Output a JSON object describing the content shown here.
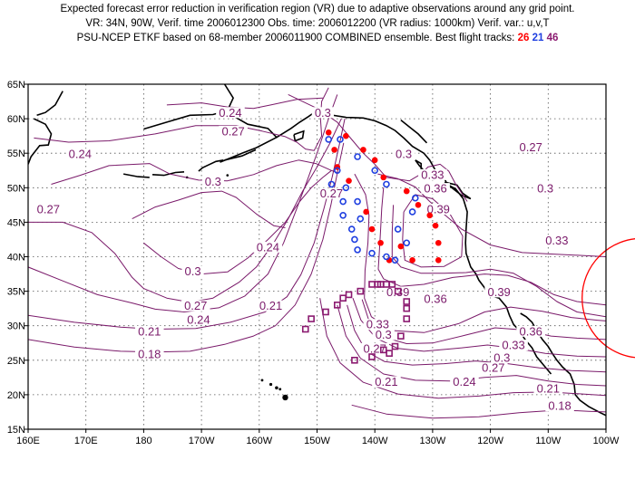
{
  "header": {
    "line1": "Expected forecast error reduction in verification region (VR) due to adaptive observations around any grid point.",
    "line2": "VR: 34N, 90W, Verif. time 2006012300   Obs. time: 2006012200 (VR radius: 1000km)    Verif. var.: u,v,T",
    "line3_prefix": "PSU-NCEP ETKF based on 68-member 2006011900 COMBINED ensemble.   Best flight tracks:",
    "track_red": "26",
    "track_blue": "21",
    "track_purple": "46"
  },
  "map": {
    "lon_labels": [
      "160E",
      "170E",
      "180",
      "170W",
      "160W",
      "150W",
      "140W",
      "130W",
      "120W",
      "110W",
      "100W"
    ],
    "lat_labels": [
      "65N",
      "60N",
      "55N",
      "50N",
      "45N",
      "40N",
      "35N",
      "30N",
      "25N",
      "20N",
      "15N"
    ],
    "contour_color": "#7a1a6a",
    "contour_labels": [
      {
        "text": "0.24",
        "lon": -165,
        "lat": 60.5
      },
      {
        "text": "0.27",
        "lon": -164.5,
        "lat": 57.8
      },
      {
        "text": "0.24",
        "lon": 169,
        "lat": 54.5
      },
      {
        "text": "0.3",
        "lon": -168,
        "lat": 50.5
      },
      {
        "text": "0.27",
        "lon": 163.5,
        "lat": 46.5
      },
      {
        "text": "0.27",
        "lon": -147.5,
        "lat": 48.8
      },
      {
        "text": "0.3",
        "lon": -149,
        "lat": 60.5
      },
      {
        "text": "0.3",
        "lon": -135,
        "lat": 54.5
      },
      {
        "text": "0.33",
        "lon": -130,
        "lat": 51.5
      },
      {
        "text": "0.36",
        "lon": -129.5,
        "lat": 49.5
      },
      {
        "text": "0.39",
        "lon": -129,
        "lat": 46.5
      },
      {
        "text": "0.27",
        "lon": -113,
        "lat": 55.5
      },
      {
        "text": "0.3",
        "lon": -110.5,
        "lat": 49.5
      },
      {
        "text": "0.33",
        "lon": -108.5,
        "lat": 42
      },
      {
        "text": "0.24",
        "lon": -158.5,
        "lat": 41
      },
      {
        "text": "0.3",
        "lon": -171.5,
        "lat": 37.5
      },
      {
        "text": "0.27",
        "lon": -171,
        "lat": 32.5
      },
      {
        "text": "0.24",
        "lon": -170.5,
        "lat": 30.5
      },
      {
        "text": "0.21",
        "lon": -158,
        "lat": 32.5
      },
      {
        "text": "0.21",
        "lon": -179,
        "lat": 28.8
      },
      {
        "text": "0.18",
        "lon": -179,
        "lat": 25.5
      },
      {
        "text": "0.39",
        "lon": -136,
        "lat": 34.5
      },
      {
        "text": "0.36",
        "lon": -129.5,
        "lat": 33.5
      },
      {
        "text": "0.39",
        "lon": -118.5,
        "lat": 34.5
      },
      {
        "text": "0.33",
        "lon": -139.5,
        "lat": 29.8
      },
      {
        "text": "0.3",
        "lon": -138.5,
        "lat": 28.3
      },
      {
        "text": "0.27",
        "lon": -140,
        "lat": 26.3
      },
      {
        "text": "0.36",
        "lon": -113,
        "lat": 28.8
      },
      {
        "text": "0.33",
        "lon": -116,
        "lat": 26.8
      },
      {
        "text": "0.3",
        "lon": -118,
        "lat": 25
      },
      {
        "text": "0.27",
        "lon": -119.5,
        "lat": 23.5
      },
      {
        "text": "0.24",
        "lon": -124.5,
        "lat": 21.5
      },
      {
        "text": "0.21",
        "lon": -138,
        "lat": 21.5
      },
      {
        "text": "0.21",
        "lon": -110,
        "lat": 20.5
      },
      {
        "text": "0.18",
        "lon": -108,
        "lat": 18
      }
    ],
    "tracks": {
      "red": {
        "color": "#ff0000",
        "points": [
          [
            -148,
            58
          ],
          [
            -147,
            55.5
          ],
          [
            -145,
            57.5
          ],
          [
            -142,
            55.5
          ],
          [
            -140,
            54
          ],
          [
            -138.5,
            51.5
          ],
          [
            -146.5,
            53
          ],
          [
            -144.5,
            51
          ],
          [
            -141.5,
            46.5
          ],
          [
            -140.5,
            44
          ],
          [
            -139,
            42
          ],
          [
            -137.5,
            39.5
          ],
          [
            -134.5,
            49.5
          ],
          [
            -132.5,
            47.5
          ],
          [
            -130.5,
            46
          ],
          [
            -129.5,
            44.5
          ],
          [
            -129,
            42
          ],
          [
            -129,
            39.5
          ],
          [
            -133.5,
            39.5
          ],
          [
            -135.5,
            41.5
          ]
        ]
      },
      "blue": {
        "color": "#1f3fe0",
        "points": [
          [
            -148,
            57
          ],
          [
            -146,
            57
          ],
          [
            -143,
            54.5
          ],
          [
            -146.5,
            52.5
          ],
          [
            -147.5,
            50.5
          ],
          [
            -145,
            50
          ],
          [
            -145.5,
            48
          ],
          [
            -143,
            48
          ],
          [
            -145.5,
            46
          ],
          [
            -142.5,
            45.5
          ],
          [
            -144,
            44
          ],
          [
            -143.5,
            42.5
          ],
          [
            -143,
            41
          ],
          [
            -140.5,
            40.5
          ],
          [
            -138,
            40
          ],
          [
            -136.5,
            39.5
          ],
          [
            -136,
            44
          ],
          [
            -134.5,
            42
          ],
          [
            -133.5,
            46.5
          ],
          [
            -133,
            48.5
          ],
          [
            -140,
            52.5
          ],
          [
            -138,
            50.5
          ]
        ]
      },
      "purple": {
        "color": "#8b1a70",
        "points": [
          [
            -152,
            29.5
          ],
          [
            -151,
            31
          ],
          [
            -148.5,
            32
          ],
          [
            -146.5,
            33
          ],
          [
            -145.5,
            34
          ],
          [
            -144.5,
            34.5
          ],
          [
            -142.5,
            35
          ],
          [
            -140.5,
            36
          ],
          [
            -139.5,
            36
          ],
          [
            -139,
            36
          ],
          [
            -138,
            36
          ],
          [
            -137,
            36
          ],
          [
            -136,
            35
          ],
          [
            -134.5,
            33.5
          ],
          [
            -134.5,
            32.5
          ],
          [
            -134.5,
            31
          ],
          [
            -135.5,
            28.5
          ],
          [
            -136.5,
            27
          ],
          [
            -137.5,
            26
          ],
          [
            -138.5,
            26.5
          ],
          [
            -140.5,
            25.5
          ],
          [
            -143.5,
            25
          ]
        ]
      }
    },
    "verification_region": {
      "lon": -90,
      "lat": 34,
      "radius_km": 1000,
      "color": "#ff0000"
    }
  }
}
